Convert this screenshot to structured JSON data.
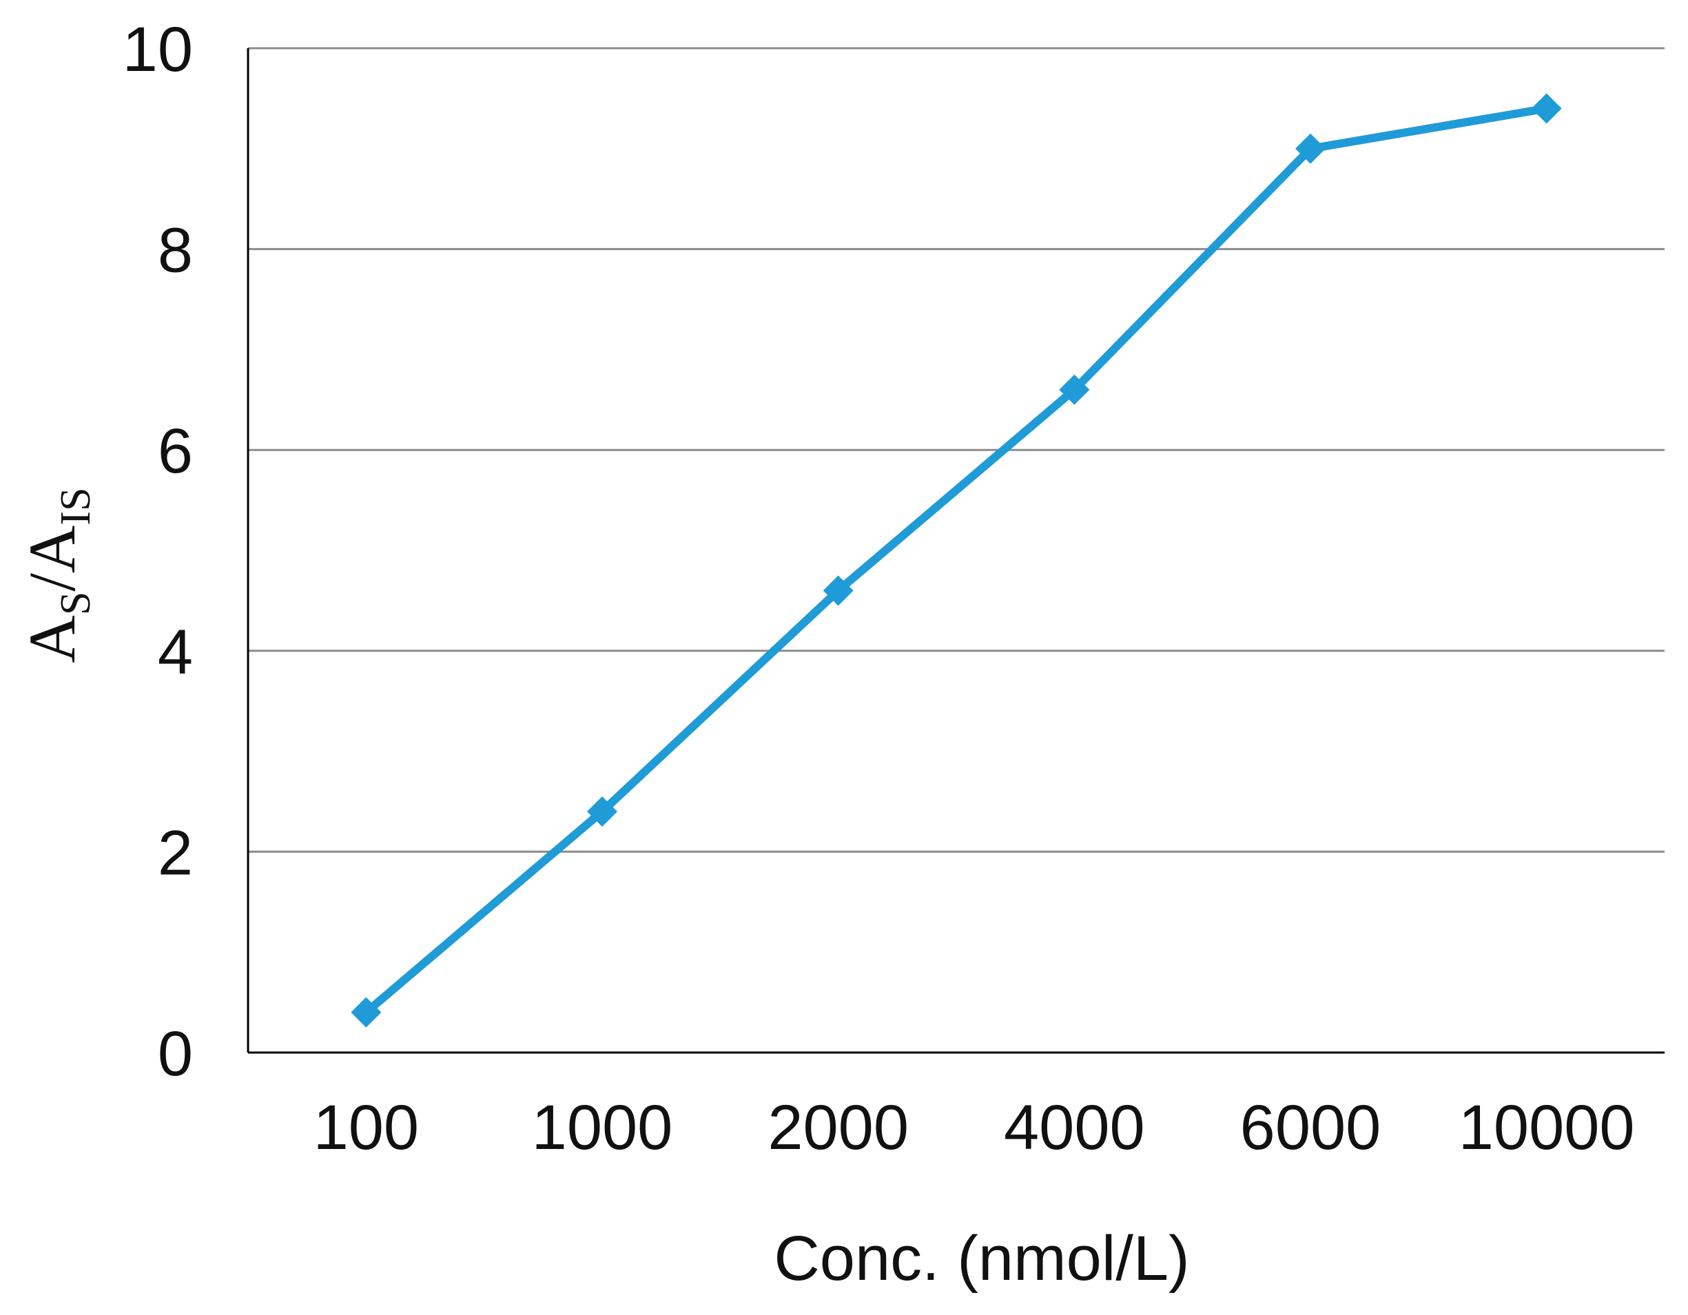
{
  "chart_data": {
    "type": "line",
    "title": "",
    "xlabel": "Conc. (nmol/L)",
    "ylabel": {
      "main_1": "A",
      "sub_1": "S",
      "sep": "/",
      "main_2": "A",
      "sub_2": "IS"
    },
    "categories": [
      "100",
      "1000",
      "2000",
      "4000",
      "6000",
      "10000"
    ],
    "series": [
      {
        "values": [
          0.4,
          2.4,
          4.6,
          6.6,
          9.0,
          9.4
        ],
        "color": "#1f9bd7",
        "marker": "diamond"
      }
    ],
    "ylim": [
      0,
      10
    ],
    "yticks": [
      "0",
      "2",
      "4",
      "6",
      "8",
      "10"
    ],
    "grid": true,
    "gridline_color": "#8c8c8c",
    "axis_color": "#000000",
    "legend": "none"
  }
}
